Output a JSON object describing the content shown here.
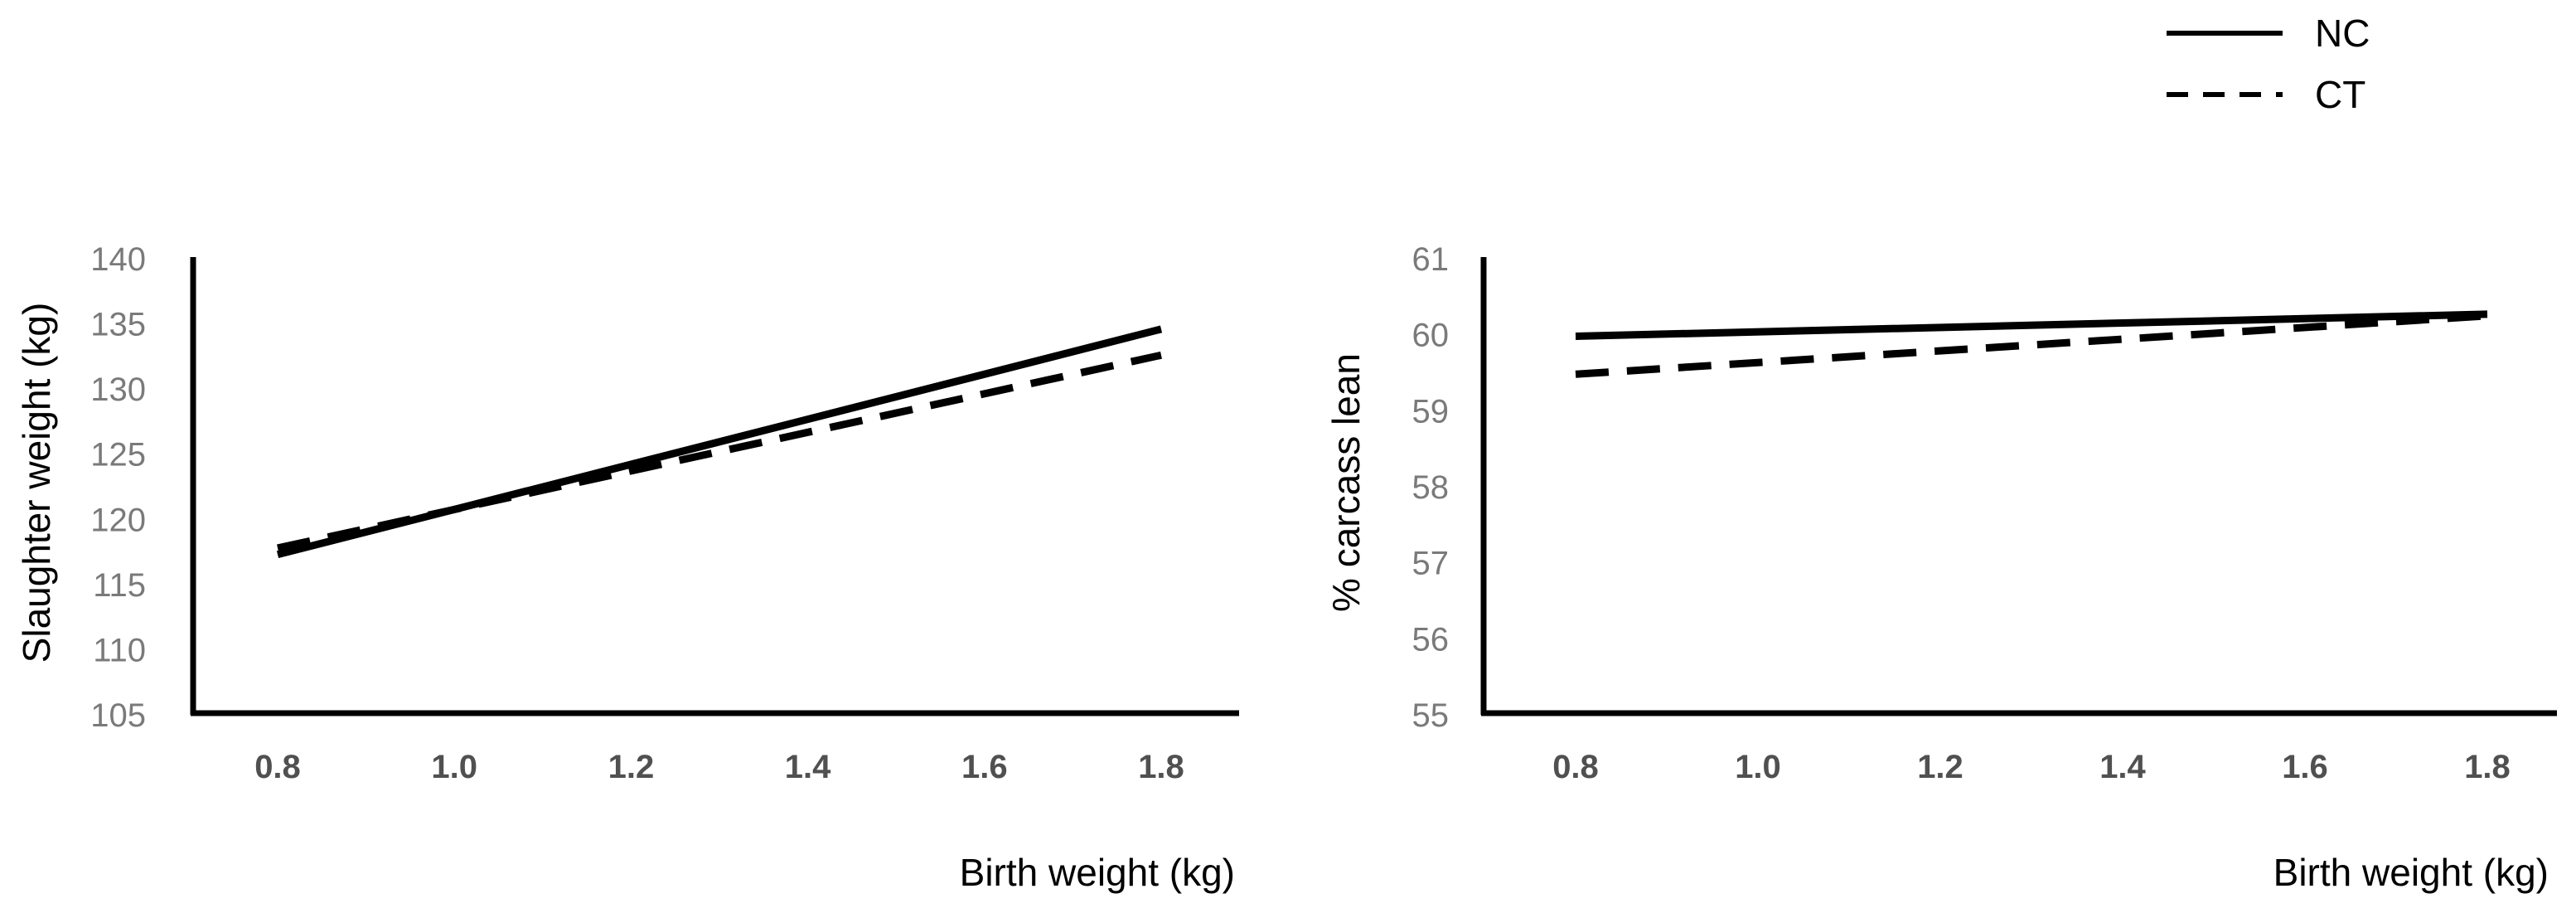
{
  "chart_data": [
    {
      "type": "line",
      "title": "",
      "xlabel": "Birth weight (kg)",
      "ylabel": "Slaughter weight (kg)",
      "xlim": [
        0.7,
        1.9
      ],
      "ylim": [
        105,
        140
      ],
      "xticks": [
        "0.8",
        "1.0",
        "1.2",
        "1.4",
        "1.6",
        "1.8"
      ],
      "yticks": [
        "105",
        "110",
        "115",
        "120",
        "125",
        "130",
        "135",
        "140"
      ],
      "x": [
        0.8,
        1.8
      ],
      "series": [
        {
          "name": "NC",
          "style": "solid",
          "values": [
            117.3,
            134.6
          ]
        },
        {
          "name": "CT",
          "style": "dashed",
          "values": [
            117.8,
            132.6
          ]
        }
      ],
      "grid": false
    },
    {
      "type": "line",
      "title": "",
      "xlabel": "Birth weight (kg)",
      "ylabel": "% carcass lean",
      "xlim": [
        0.7,
        1.9
      ],
      "ylim": [
        55,
        61
      ],
      "xticks": [
        "0.8",
        "1.0",
        "1.2",
        "1.4",
        "1.6",
        "1.8"
      ],
      "yticks": [
        "55",
        "56",
        "57",
        "58",
        "59",
        "60",
        "61"
      ],
      "x": [
        0.8,
        1.8
      ],
      "series": [
        {
          "name": "NC",
          "style": "solid",
          "values": [
            59.98,
            60.27
          ]
        },
        {
          "name": "CT",
          "style": "dashed",
          "values": [
            59.48,
            60.25
          ]
        }
      ],
      "grid": false
    }
  ],
  "legend": {
    "placement": "top-right",
    "entries": [
      {
        "name": "NC",
        "style": "solid"
      },
      {
        "name": "CT",
        "style": "dashed"
      }
    ]
  },
  "colors": {
    "line": "#000000",
    "axis": "#000000",
    "tick_y": "#7a7a7a",
    "tick_x": "#505050"
  }
}
